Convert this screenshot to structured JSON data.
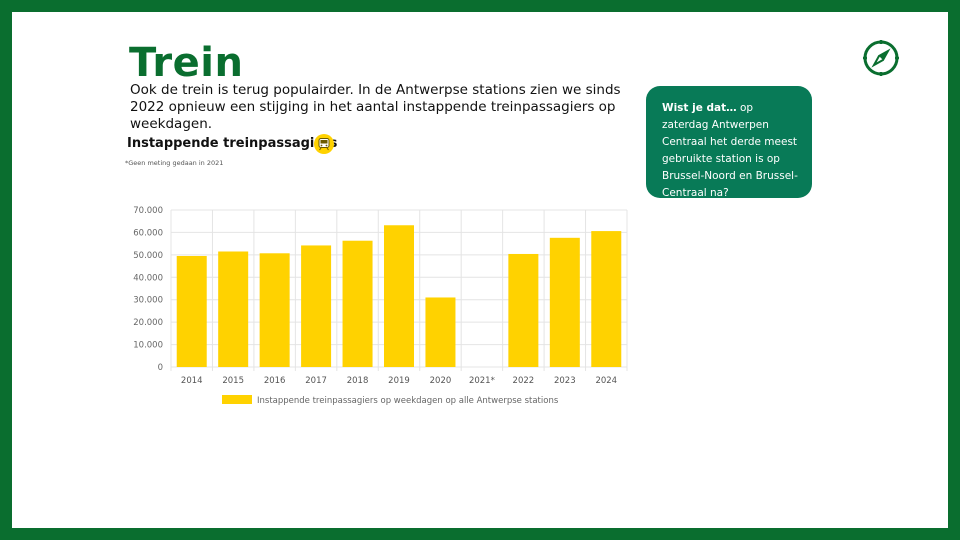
{
  "header": {
    "title": "Trein",
    "intro": "Ook de trein is terug populairder. In de Antwerpse stations zien we sinds 2022 opnieuw een stijging in het aantal instappende treinpassagiers op weekdagen."
  },
  "info": {
    "lead": "Wist je dat…",
    "text": " op zaterdag Antwerpen Centraal het derde meest gebruikte station is op Brussel-Noord en Brussel-Centraal na?"
  },
  "icons": {
    "compass": "compass-icon",
    "train": "train-icon"
  },
  "colors": {
    "brand_green": "#0a6e2f",
    "info_box": "#087a57",
    "bar": "#ffd200"
  },
  "chart_data": {
    "type": "bar",
    "title": "Instappende treinpassagiers",
    "note": "*Geen meting gedaan in 2021",
    "categories": [
      "2014",
      "2015",
      "2016",
      "2017",
      "2018",
      "2019",
      "2020",
      "2021*",
      "2022",
      "2023",
      "2024"
    ],
    "series": [
      {
        "name": "Instappende treinpassagiers op weekdagen op alle Antwerpse stations",
        "values": [
          49500,
          51500,
          50700,
          54200,
          56300,
          63200,
          31000,
          null,
          50400,
          57600,
          60600
        ]
      }
    ],
    "ylim": [
      0,
      70000
    ],
    "yticks": [
      "0",
      "10.000",
      "20.000",
      "30.000",
      "40.000",
      "50.000",
      "60.000",
      "70.000"
    ],
    "grid": true,
    "legend": "bottom"
  }
}
